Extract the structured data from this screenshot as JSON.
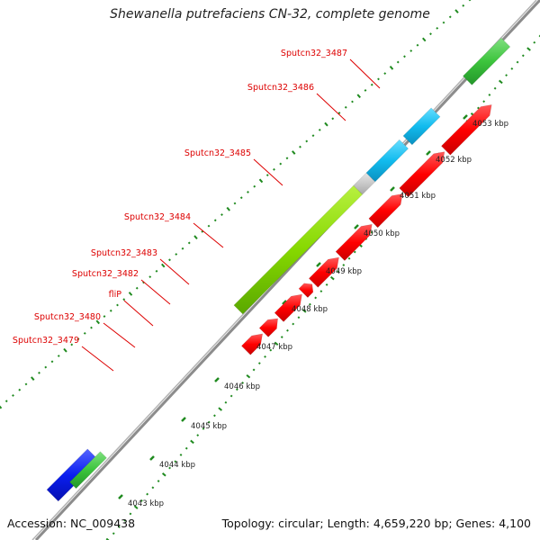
{
  "title": "Shewanella putrefaciens CN-32, complete genome",
  "footer": {
    "accession": "Accession: NC_009438",
    "summary": "Topology: circular; Length: 4,659,220 bp; Genes: 4,100"
  },
  "colors": {
    "backbone": "#8c8c8c",
    "tick": "#1f8a1f",
    "label": "#dd0000",
    "kbp_label": "#222222",
    "red": "#ff0000",
    "green_light": "#8ee000",
    "green": "#3fc63f",
    "cyan": "#11bbee",
    "gray": "#c8c8c8",
    "blue": "#0a1ef0"
  },
  "kbp_labels": [
    {
      "kbp": 4043,
      "text": "4043 kbp"
    },
    {
      "kbp": 4044,
      "text": "4044 kbp"
    },
    {
      "kbp": 4045,
      "text": "4045 kbp"
    },
    {
      "kbp": 4046,
      "text": "4046 kbp"
    },
    {
      "kbp": 4047,
      "text": "4047 kbp"
    },
    {
      "kbp": 4048,
      "text": "4048 kbp"
    },
    {
      "kbp": 4049,
      "text": "4049 kbp"
    },
    {
      "kbp": 4050,
      "text": "4050 kbp"
    },
    {
      "kbp": 4051,
      "text": "4051 kbp"
    },
    {
      "kbp": 4052,
      "text": "4052 kbp"
    },
    {
      "kbp": 4053,
      "text": "4053 kbp"
    }
  ],
  "gene_labels": [
    {
      "text": "Sputcn32_3487"
    },
    {
      "text": "Sputcn32_3486"
    },
    {
      "text": "Sputcn32_3485"
    },
    {
      "text": "Sputcn32_3484"
    },
    {
      "text": "Sputcn32_3483"
    },
    {
      "text": "Sputcn32_3482"
    },
    {
      "text": "fliP"
    },
    {
      "text": "Sputcn32_3480"
    },
    {
      "text": "Sputcn32_3479"
    }
  ],
  "features": [
    {
      "track": "outer",
      "kind": "blue"
    },
    {
      "track": "outer",
      "kind": "green"
    },
    {
      "track": "inner",
      "kind": "red"
    },
    {
      "track": "inner",
      "kind": "red"
    },
    {
      "track": "inner",
      "kind": "red"
    },
    {
      "track": "inner",
      "kind": "red"
    },
    {
      "track": "inner",
      "kind": "red"
    },
    {
      "track": "inner",
      "kind": "red"
    },
    {
      "track": "inner",
      "kind": "red"
    },
    {
      "track": "inner",
      "kind": "red"
    },
    {
      "track": "inner",
      "kind": "red"
    },
    {
      "track": "outer",
      "kind": "green_light"
    },
    {
      "track": "outer",
      "kind": "gray"
    },
    {
      "track": "outer",
      "kind": "cyan"
    },
    {
      "track": "outer",
      "kind": "cyan"
    },
    {
      "track": "outer",
      "kind": "green"
    }
  ]
}
